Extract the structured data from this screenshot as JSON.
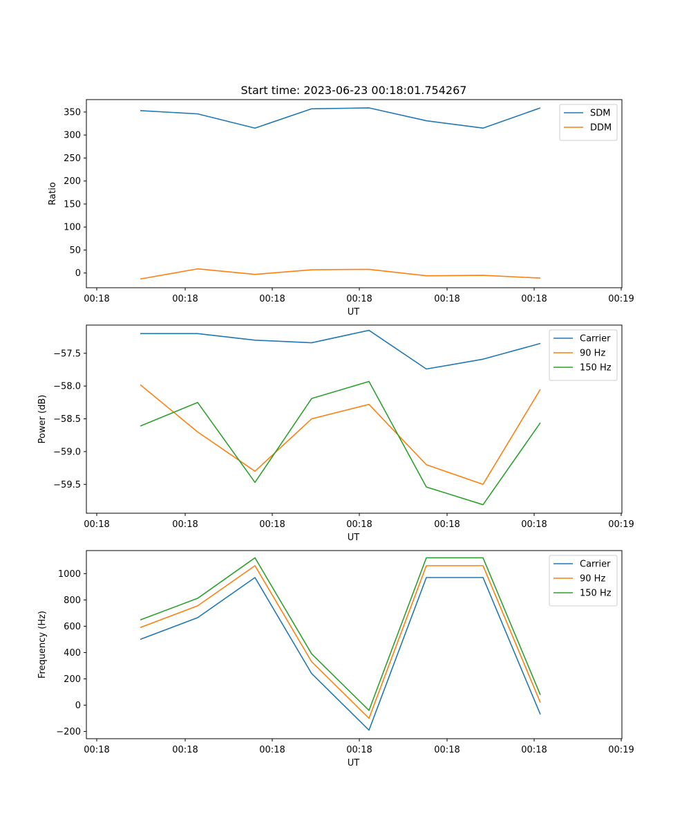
{
  "figure": {
    "title": "Start time: 2023-06-23 00:18:01.754267"
  },
  "chart_data": [
    {
      "type": "line",
      "title": "Start time: 2023-06-23 00:18:01.754267",
      "xlabel": "UT",
      "ylabel": "Ratio",
      "x_tick_labels": [
        "00:18",
        "00:18",
        "00:18",
        "00:18",
        "00:18",
        "00:18",
        "00:19"
      ],
      "ylim": [
        -32,
        377
      ],
      "y_ticks": [
        0,
        50,
        100,
        150,
        200,
        250,
        300,
        350
      ],
      "legend_position": "top-right",
      "grid": false,
      "series": [
        {
          "name": "SDM",
          "color": "#1f77b4",
          "values": [
            353,
            346,
            315,
            357,
            359,
            331,
            315,
            359
          ]
        },
        {
          "name": "DDM",
          "color": "#ff7f0e",
          "values": [
            -13,
            9,
            -3,
            7,
            8,
            -6,
            -5,
            -11
          ]
        }
      ]
    },
    {
      "type": "line",
      "xlabel": "UT",
      "ylabel": "Power (dB)",
      "x_tick_labels": [
        "00:18",
        "00:18",
        "00:18",
        "00:18",
        "00:18",
        "00:18",
        "00:19"
      ],
      "ylim": [
        -59.94,
        -57.07
      ],
      "y_ticks": [
        -59.5,
        -59.0,
        -58.5,
        -58.0,
        -57.5
      ],
      "y_tick_labels": [
        "−59.5",
        "−59.0",
        "−58.5",
        "−58.0",
        "−57.5"
      ],
      "legend_position": "top-right",
      "grid": false,
      "series": [
        {
          "name": "Carrier",
          "color": "#1f77b4",
          "values": [
            -57.2,
            -57.2,
            -57.3,
            -57.34,
            -57.15,
            -57.74,
            -57.59,
            -57.35
          ]
        },
        {
          "name": "90 Hz",
          "color": "#ff7f0e",
          "values": [
            -57.98,
            -58.7,
            -59.3,
            -58.5,
            -58.28,
            -59.2,
            -59.5,
            -58.05
          ]
        },
        {
          "name": "150 Hz",
          "color": "#2ca02c",
          "values": [
            -58.61,
            -58.25,
            -59.47,
            -58.19,
            -57.93,
            -59.54,
            -59.81,
            -58.56
          ]
        }
      ]
    },
    {
      "type": "line",
      "xlabel": "UT",
      "ylabel": "Frequency (Hz)",
      "x_tick_labels": [
        "00:18",
        "00:18",
        "00:18",
        "00:18",
        "00:18",
        "00:18",
        "00:19"
      ],
      "ylim": [
        -255,
        1175
      ],
      "y_ticks": [
        -200,
        0,
        200,
        400,
        600,
        800,
        1000
      ],
      "y_tick_labels": [
        "−200",
        "0",
        "200",
        "400",
        "600",
        "800",
        "1000"
      ],
      "legend_position": "top-right",
      "grid": false,
      "series": [
        {
          "name": "Carrier",
          "color": "#1f77b4",
          "values": [
            500,
            665,
            970,
            240,
            -190,
            970,
            970,
            -70
          ]
        },
        {
          "name": "90 Hz",
          "color": "#ff7f0e",
          "values": [
            590,
            755,
            1060,
            330,
            -100,
            1060,
            1060,
            20
          ]
        },
        {
          "name": "150 Hz",
          "color": "#2ca02c",
          "values": [
            648,
            812,
            1120,
            390,
            -40,
            1120,
            1120,
            78
          ]
        }
      ]
    }
  ]
}
